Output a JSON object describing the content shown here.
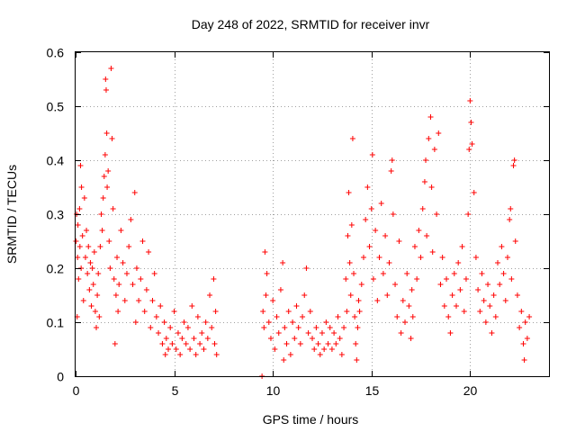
{
  "chart_data": {
    "type": "scatter",
    "title": "Day 248 of 2022, SRMTID for receiver invr",
    "xlabel": "GPS time / hours",
    "ylabel": "SRMTID / TECUs",
    "xlim": [
      0,
      24
    ],
    "ylim": [
      0,
      0.6
    ],
    "xticks": [
      0,
      5,
      10,
      15,
      20
    ],
    "yticks": [
      0,
      0.1,
      0.2,
      0.3,
      0.4,
      0.5,
      0.6
    ],
    "xtick_labels": [
      "0",
      "5",
      "10",
      "15",
      "20"
    ],
    "ytick_labels": [
      "0",
      "0.1",
      "0.2",
      "0.3",
      "0.4",
      "0.5",
      "0.6"
    ],
    "grid": true,
    "marker": "+",
    "color": "#ff0000",
    "series": [
      {
        "name": "SRMTID",
        "values": [
          [
            0.02,
            0.25
          ],
          [
            0.05,
            0.3
          ],
          [
            0.08,
            0.11
          ],
          [
            0.1,
            0.22
          ],
          [
            0.12,
            0.28
          ],
          [
            0.15,
            0.18
          ],
          [
            0.2,
            0.31
          ],
          [
            0.22,
            0.24
          ],
          [
            0.25,
            0.39
          ],
          [
            0.28,
            0.2
          ],
          [
            0.3,
            0.35
          ],
          [
            0.35,
            0.26
          ],
          [
            0.4,
            0.14
          ],
          [
            0.45,
            0.33
          ],
          [
            0.5,
            0.22
          ],
          [
            0.55,
            0.27
          ],
          [
            0.6,
            0.19
          ],
          [
            0.65,
            0.24
          ],
          [
            0.7,
            0.16
          ],
          [
            0.75,
            0.21
          ],
          [
            0.8,
            0.13
          ],
          [
            0.85,
            0.2
          ],
          [
            0.9,
            0.17
          ],
          [
            0.95,
            0.23
          ],
          [
            1.0,
            0.12
          ],
          [
            1.05,
            0.09
          ],
          [
            1.1,
            0.15
          ],
          [
            1.15,
            0.19
          ],
          [
            1.2,
            0.11
          ],
          [
            1.25,
            0.24
          ],
          [
            1.3,
            0.3
          ],
          [
            1.35,
            0.27
          ],
          [
            1.4,
            0.33
          ],
          [
            1.45,
            0.37
          ],
          [
            1.5,
            0.41
          ],
          [
            1.52,
            0.55
          ],
          [
            1.55,
            0.53
          ],
          [
            1.58,
            0.45
          ],
          [
            1.6,
            0.35
          ],
          [
            1.65,
            0.38
          ],
          [
            1.7,
            0.25
          ],
          [
            1.75,
            0.2
          ],
          [
            1.8,
            0.57
          ],
          [
            1.85,
            0.44
          ],
          [
            1.9,
            0.31
          ],
          [
            1.95,
            0.18
          ],
          [
            2.0,
            0.06
          ],
          [
            2.05,
            0.15
          ],
          [
            2.1,
            0.22
          ],
          [
            2.15,
            0.12
          ],
          [
            2.2,
            0.17
          ],
          [
            2.3,
            0.27
          ],
          [
            2.4,
            0.21
          ],
          [
            2.5,
            0.14
          ],
          [
            2.6,
            0.19
          ],
          [
            2.7,
            0.24
          ],
          [
            2.8,
            0.29
          ],
          [
            2.9,
            0.17
          ],
          [
            3.0,
            0.34
          ],
          [
            3.05,
            0.1
          ],
          [
            3.1,
            0.2
          ],
          [
            3.2,
            0.14
          ],
          [
            3.3,
            0.18
          ],
          [
            3.4,
            0.25
          ],
          [
            3.5,
            0.12
          ],
          [
            3.6,
            0.16
          ],
          [
            3.7,
            0.23
          ],
          [
            3.8,
            0.09
          ],
          [
            3.9,
            0.14
          ],
          [
            4.0,
            0.19
          ],
          [
            4.1,
            0.11
          ],
          [
            4.2,
            0.08
          ],
          [
            4.3,
            0.13
          ],
          [
            4.4,
            0.06
          ],
          [
            4.5,
            0.1
          ],
          [
            4.55,
            0.04
          ],
          [
            4.6,
            0.07
          ],
          [
            4.7,
            0.05
          ],
          [
            4.8,
            0.09
          ],
          [
            4.9,
            0.06
          ],
          [
            5.0,
            0.12
          ],
          [
            5.1,
            0.05
          ],
          [
            5.2,
            0.08
          ],
          [
            5.3,
            0.04
          ],
          [
            5.4,
            0.07
          ],
          [
            5.5,
            0.1
          ],
          [
            5.6,
            0.06
          ],
          [
            5.7,
            0.09
          ],
          [
            5.8,
            0.05
          ],
          [
            5.9,
            0.13
          ],
          [
            6.0,
            0.07
          ],
          [
            6.1,
            0.04
          ],
          [
            6.2,
            0.11
          ],
          [
            6.3,
            0.06
          ],
          [
            6.4,
            0.08
          ],
          [
            6.5,
            0.05
          ],
          [
            6.6,
            0.1
          ],
          [
            6.7,
            0.07
          ],
          [
            6.8,
            0.15
          ],
          [
            6.9,
            0.09
          ],
          [
            7.0,
            0.18
          ],
          [
            7.05,
            0.06
          ],
          [
            7.1,
            0.12
          ],
          [
            7.15,
            0.04
          ],
          [
            9.45,
            0.0
          ],
          [
            9.5,
            0.12
          ],
          [
            9.55,
            0.09
          ],
          [
            9.6,
            0.23
          ],
          [
            9.65,
            0.15
          ],
          [
            9.7,
            0.19
          ],
          [
            9.8,
            0.1
          ],
          [
            9.9,
            0.07
          ],
          [
            10.0,
            0.14
          ],
          [
            10.1,
            0.05
          ],
          [
            10.2,
            0.11
          ],
          [
            10.3,
            0.08
          ],
          [
            10.4,
            0.16
          ],
          [
            10.5,
            0.21
          ],
          [
            10.55,
            0.03
          ],
          [
            10.6,
            0.09
          ],
          [
            10.7,
            0.06
          ],
          [
            10.8,
            0.12
          ],
          [
            10.9,
            0.04
          ],
          [
            11.0,
            0.1
          ],
          [
            11.1,
            0.07
          ],
          [
            11.2,
            0.13
          ],
          [
            11.3,
            0.09
          ],
          [
            11.4,
            0.06
          ],
          [
            11.5,
            0.11
          ],
          [
            11.6,
            0.15
          ],
          [
            11.7,
            0.2
          ],
          [
            11.8,
            0.08
          ],
          [
            11.9,
            0.12
          ],
          [
            12.0,
            0.07
          ],
          [
            12.1,
            0.05
          ],
          [
            12.2,
            0.09
          ],
          [
            12.3,
            0.06
          ],
          [
            12.4,
            0.04
          ],
          [
            12.5,
            0.08
          ],
          [
            12.6,
            0.05
          ],
          [
            12.7,
            0.1
          ],
          [
            12.8,
            0.06
          ],
          [
            12.9,
            0.09
          ],
          [
            13.0,
            0.05
          ],
          [
            13.1,
            0.08
          ],
          [
            13.2,
            0.06
          ],
          [
            13.3,
            0.11
          ],
          [
            13.4,
            0.07
          ],
          [
            13.5,
            0.04
          ],
          [
            13.6,
            0.09
          ],
          [
            13.7,
            0.18
          ],
          [
            13.75,
            0.12
          ],
          [
            13.8,
            0.26
          ],
          [
            13.85,
            0.34
          ],
          [
            13.9,
            0.21
          ],
          [
            13.95,
            0.15
          ],
          [
            14.0,
            0.28
          ],
          [
            14.05,
            0.44
          ],
          [
            14.1,
            0.19
          ],
          [
            14.15,
            0.11
          ],
          [
            14.2,
            0.06
          ],
          [
            14.25,
            0.03
          ],
          [
            14.3,
            0.09
          ],
          [
            14.35,
            0.14
          ],
          [
            14.4,
            0.12
          ],
          [
            14.5,
            0.17
          ],
          [
            14.6,
            0.22
          ],
          [
            14.7,
            0.29
          ],
          [
            14.8,
            0.35
          ],
          [
            14.9,
            0.24
          ],
          [
            15.0,
            0.31
          ],
          [
            15.05,
            0.41
          ],
          [
            15.1,
            0.18
          ],
          [
            15.2,
            0.27
          ],
          [
            15.3,
            0.14
          ],
          [
            15.4,
            0.22
          ],
          [
            15.5,
            0.32
          ],
          [
            15.6,
            0.19
          ],
          [
            15.7,
            0.26
          ],
          [
            15.8,
            0.15
          ],
          [
            15.9,
            0.21
          ],
          [
            16.0,
            0.38
          ],
          [
            16.05,
            0.4
          ],
          [
            16.1,
            0.3
          ],
          [
            16.2,
            0.17
          ],
          [
            16.3,
            0.11
          ],
          [
            16.4,
            0.25
          ],
          [
            16.5,
            0.08
          ],
          [
            16.6,
            0.14
          ],
          [
            16.7,
            0.1
          ],
          [
            16.8,
            0.19
          ],
          [
            16.9,
            0.13
          ],
          [
            17.0,
            0.07
          ],
          [
            17.05,
            0.16
          ],
          [
            17.1,
            0.11
          ],
          [
            17.2,
            0.24
          ],
          [
            17.3,
            0.18
          ],
          [
            17.4,
            0.27
          ],
          [
            17.5,
            0.22
          ],
          [
            17.6,
            0.31
          ],
          [
            17.7,
            0.36
          ],
          [
            17.75,
            0.4
          ],
          [
            17.8,
            0.26
          ],
          [
            17.9,
            0.44
          ],
          [
            18.0,
            0.48
          ],
          [
            18.05,
            0.35
          ],
          [
            18.1,
            0.23
          ],
          [
            18.2,
            0.42
          ],
          [
            18.3,
            0.3
          ],
          [
            18.4,
            0.45
          ],
          [
            18.5,
            0.17
          ],
          [
            18.6,
            0.22
          ],
          [
            18.7,
            0.13
          ],
          [
            18.8,
            0.18
          ],
          [
            18.9,
            0.11
          ],
          [
            19.0,
            0.08
          ],
          [
            19.1,
            0.15
          ],
          [
            19.2,
            0.19
          ],
          [
            19.3,
            0.13
          ],
          [
            19.4,
            0.21
          ],
          [
            19.5,
            0.16
          ],
          [
            19.6,
            0.24
          ],
          [
            19.7,
            0.12
          ],
          [
            19.8,
            0.18
          ],
          [
            19.9,
            0.3
          ],
          [
            19.95,
            0.42
          ],
          [
            20.0,
            0.51
          ],
          [
            20.05,
            0.47
          ],
          [
            20.1,
            0.43
          ],
          [
            20.2,
            0.34
          ],
          [
            20.3,
            0.22
          ],
          [
            20.4,
            0.16
          ],
          [
            20.5,
            0.12
          ],
          [
            20.6,
            0.19
          ],
          [
            20.7,
            0.14
          ],
          [
            20.8,
            0.1
          ],
          [
            20.9,
            0.17
          ],
          [
            21.0,
            0.13
          ],
          [
            21.1,
            0.08
          ],
          [
            21.2,
            0.15
          ],
          [
            21.3,
            0.11
          ],
          [
            21.4,
            0.21
          ],
          [
            21.5,
            0.17
          ],
          [
            21.6,
            0.24
          ],
          [
            21.7,
            0.19
          ],
          [
            21.8,
            0.14
          ],
          [
            21.9,
            0.22
          ],
          [
            22.0,
            0.29
          ],
          [
            22.05,
            0.31
          ],
          [
            22.1,
            0.18
          ],
          [
            22.2,
            0.39
          ],
          [
            22.25,
            0.4
          ],
          [
            22.3,
            0.25
          ],
          [
            22.4,
            0.15
          ],
          [
            22.5,
            0.09
          ],
          [
            22.6,
            0.12
          ],
          [
            22.7,
            0.06
          ],
          [
            22.75,
            0.03
          ],
          [
            22.8,
            0.1
          ],
          [
            22.9,
            0.07
          ],
          [
            23.0,
            0.11
          ]
        ]
      }
    ]
  }
}
